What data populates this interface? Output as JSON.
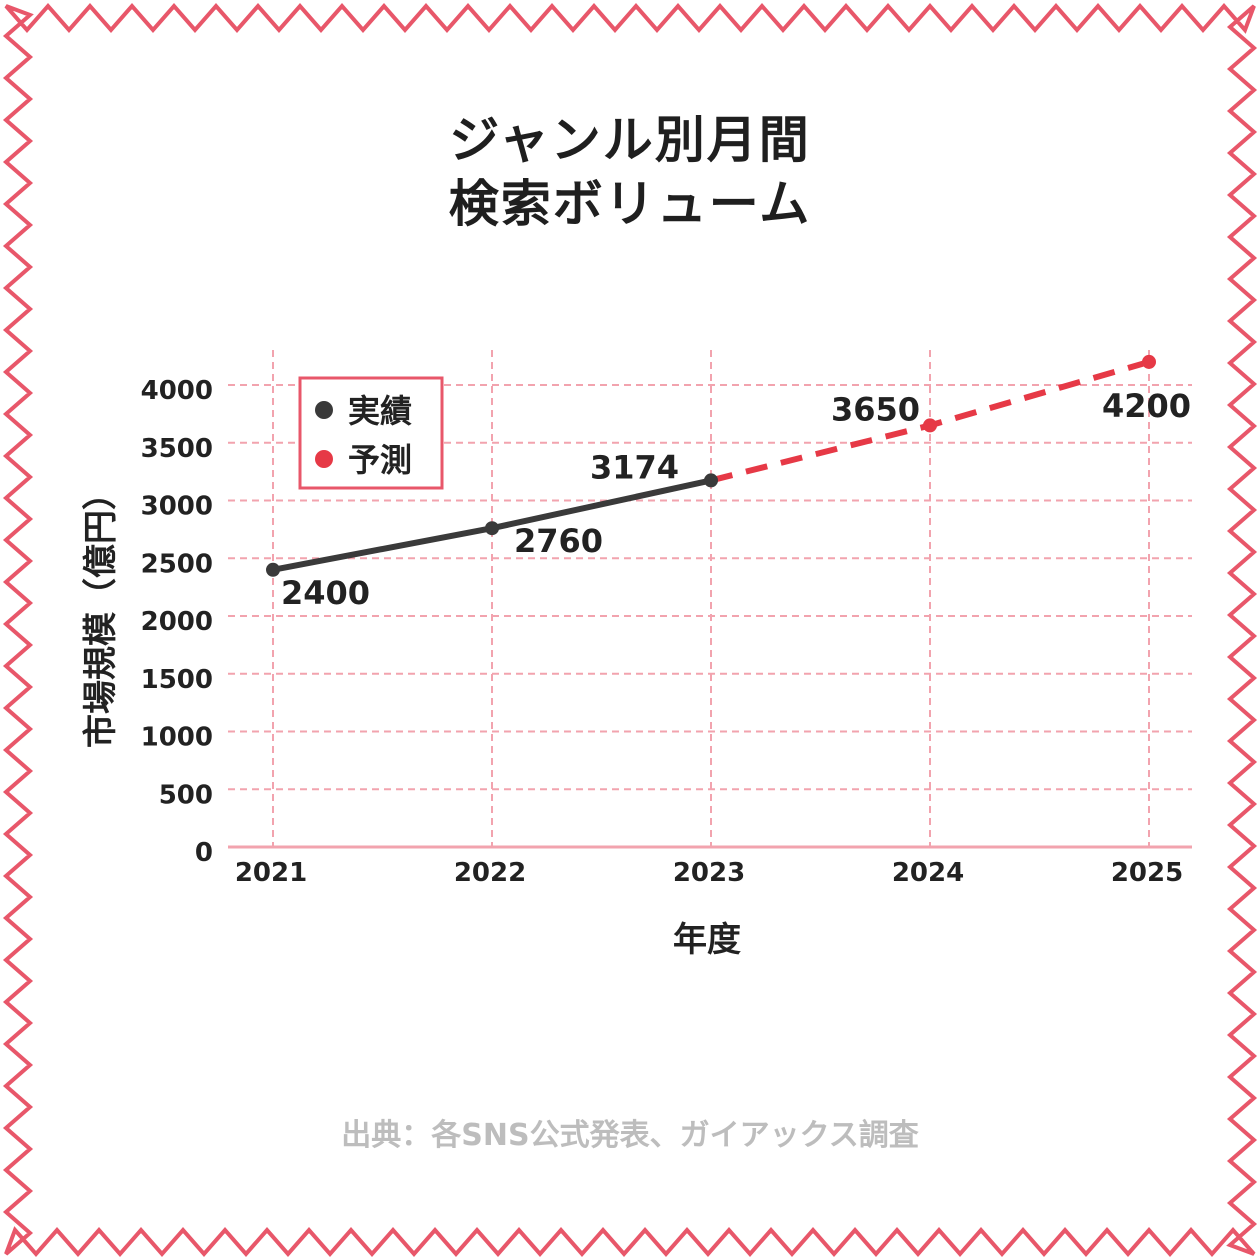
{
  "title": {
    "line1": "ジャンル別月間",
    "line2": "検索ボリューム"
  },
  "source": "出典：各SNS公式発表、ガイアックス調査",
  "colors": {
    "frame": "#e8576a",
    "grid": "#f2a3ae",
    "actual": "#3a3a3a",
    "forecast": "#e63946"
  },
  "chart_data": {
    "type": "line",
    "xlabel": "年度",
    "ylabel": "市場規模（億円）",
    "categories": [
      "2021",
      "2022",
      "2023",
      "2024",
      "2025"
    ],
    "ylim": [
      0,
      4000
    ],
    "yticks": [
      "0",
      "500",
      "1000",
      "1500",
      "2000",
      "2500",
      "3000",
      "3500",
      "4000"
    ],
    "grid": true,
    "legend_position": "top-left",
    "series": [
      {
        "name": "実績",
        "style": "solid",
        "x": [
          "2021",
          "2022",
          "2023"
        ],
        "values": [
          2400,
          2760,
          3174
        ],
        "labels": [
          "2400",
          "2760",
          "3174"
        ]
      },
      {
        "name": "予測",
        "style": "dashed",
        "x": [
          "2023",
          "2024",
          "2025"
        ],
        "values": [
          3174,
          3650,
          4200
        ],
        "labels": [
          "",
          "3650",
          "4200"
        ]
      }
    ]
  }
}
